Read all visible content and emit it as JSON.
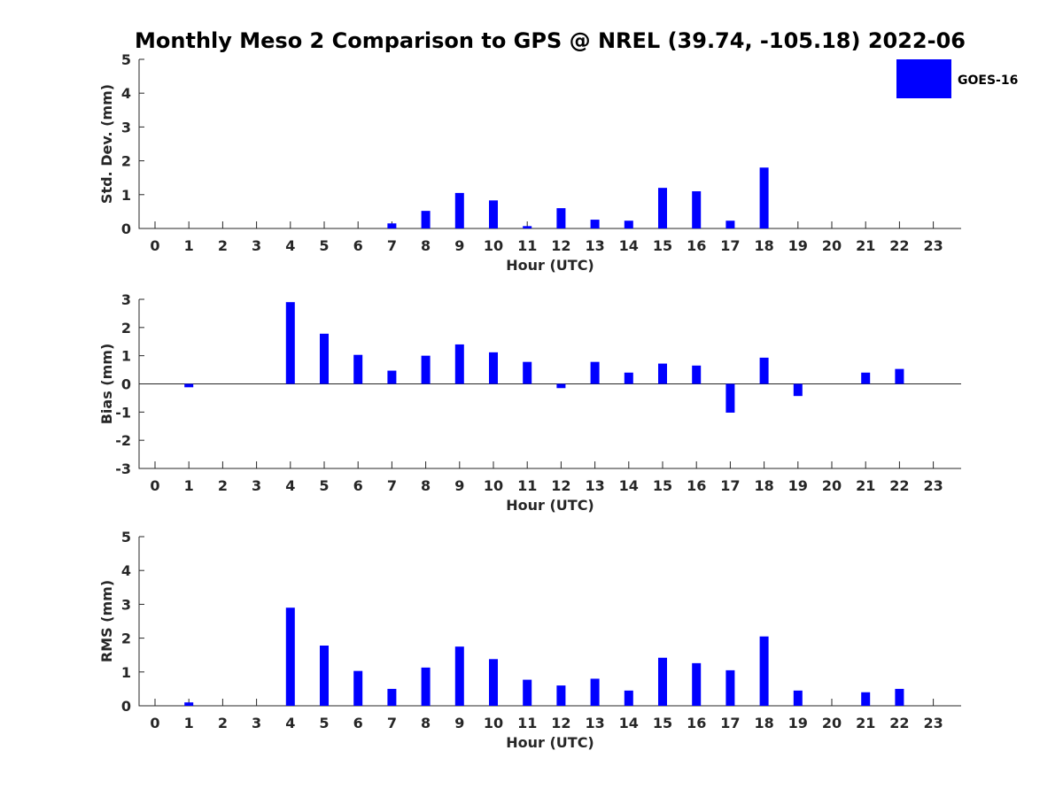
{
  "title": "Monthly Meso 2 Comparison to GPS @ NREL (39.74, -105.18) 2022-06",
  "legend": {
    "label": "GOES-16",
    "color": "#0000ff"
  },
  "chart_data": [
    {
      "type": "bar",
      "ylabel": "Std. Dev. (mm)",
      "xlabel": "Hour (UTC)",
      "ylim": [
        0,
        5
      ],
      "yticks": [
        "0",
        "1",
        "2",
        "3",
        "4",
        "5"
      ],
      "xticks": [
        "0",
        "1",
        "2",
        "3",
        "4",
        "5",
        "6",
        "7",
        "8",
        "9",
        "10",
        "11",
        "12",
        "13",
        "14",
        "15",
        "16",
        "17",
        "18",
        "19",
        "20",
        "21",
        "22",
        "23"
      ],
      "series": [
        {
          "name": "GOES-16",
          "values": [
            0,
            0,
            0,
            0,
            0,
            0,
            0,
            0.15,
            0.52,
            1.05,
            0.83,
            0.07,
            0.6,
            0.26,
            0.23,
            1.2,
            1.1,
            0.23,
            1.8,
            0,
            0,
            0,
            0,
            0
          ]
        }
      ]
    },
    {
      "type": "bar",
      "ylabel": "Bias (mm)",
      "xlabel": "Hour (UTC)",
      "ylim": [
        -3,
        3
      ],
      "yticks": [
        "-3",
        "-2",
        "-1",
        "0",
        "1",
        "2",
        "3"
      ],
      "xticks": [
        "0",
        "1",
        "2",
        "3",
        "4",
        "5",
        "6",
        "7",
        "8",
        "9",
        "10",
        "11",
        "12",
        "13",
        "14",
        "15",
        "16",
        "17",
        "18",
        "19",
        "20",
        "21",
        "22",
        "23"
      ],
      "series": [
        {
          "name": "GOES-16",
          "values": [
            0,
            -0.12,
            0,
            0,
            2.9,
            1.78,
            1.03,
            0.47,
            1.0,
            1.4,
            1.12,
            0.78,
            -0.15,
            0.78,
            0.4,
            0.72,
            0.65,
            -1.02,
            0.93,
            -0.43,
            0,
            0.4,
            0.53,
            0
          ]
        }
      ]
    },
    {
      "type": "bar",
      "ylabel": "RMS (mm)",
      "xlabel": "Hour (UTC)",
      "ylim": [
        0,
        5
      ],
      "yticks": [
        "0",
        "1",
        "2",
        "3",
        "4",
        "5"
      ],
      "xticks": [
        "0",
        "1",
        "2",
        "3",
        "4",
        "5",
        "6",
        "7",
        "8",
        "9",
        "10",
        "11",
        "12",
        "13",
        "14",
        "15",
        "16",
        "17",
        "18",
        "19",
        "20",
        "21",
        "22",
        "23"
      ],
      "series": [
        {
          "name": "GOES-16",
          "values": [
            0,
            0.1,
            0,
            0,
            2.9,
            1.78,
            1.03,
            0.5,
            1.13,
            1.75,
            1.38,
            0.77,
            0.6,
            0.8,
            0.45,
            1.42,
            1.26,
            1.05,
            2.05,
            0.45,
            0,
            0.4,
            0.5,
            0
          ]
        }
      ]
    }
  ]
}
